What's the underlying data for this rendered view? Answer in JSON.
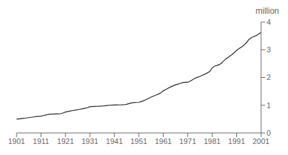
{
  "chart_data": {
    "type": "line",
    "ylabel": "million",
    "x": [
      1901,
      1902,
      1903,
      1904,
      1905,
      1906,
      1907,
      1908,
      1909,
      1910,
      1911,
      1912,
      1913,
      1914,
      1915,
      1916,
      1917,
      1918,
      1919,
      1920,
      1921,
      1922,
      1923,
      1924,
      1925,
      1926,
      1927,
      1928,
      1929,
      1930,
      1931,
      1932,
      1933,
      1934,
      1935,
      1936,
      1937,
      1938,
      1939,
      1940,
      1941,
      1942,
      1943,
      1944,
      1945,
      1946,
      1947,
      1948,
      1949,
      1950,
      1951,
      1952,
      1953,
      1954,
      1955,
      1956,
      1957,
      1958,
      1959,
      1960,
      1961,
      1962,
      1963,
      1964,
      1965,
      1966,
      1967,
      1968,
      1969,
      1970,
      1971,
      1972,
      1973,
      1974,
      1975,
      1976,
      1977,
      1978,
      1979,
      1980,
      1981,
      1982,
      1983,
      1984,
      1985,
      1986,
      1987,
      1988,
      1989,
      1990,
      1991,
      1992,
      1993,
      1994,
      1995,
      1996,
      1997,
      1998,
      1999,
      2000,
      2001
    ],
    "values": [
      0.498,
      0.508,
      0.519,
      0.53,
      0.54,
      0.553,
      0.566,
      0.578,
      0.591,
      0.6,
      0.606,
      0.627,
      0.648,
      0.67,
      0.68,
      0.682,
      0.685,
      0.686,
      0.695,
      0.72,
      0.756,
      0.772,
      0.79,
      0.808,
      0.822,
      0.839,
      0.857,
      0.874,
      0.893,
      0.913,
      0.947,
      0.955,
      0.96,
      0.963,
      0.966,
      0.97,
      0.978,
      0.99,
      1.0,
      1.005,
      1.009,
      1.011,
      1.013,
      1.015,
      1.019,
      1.035,
      1.059,
      1.082,
      1.096,
      1.099,
      1.106,
      1.135,
      1.165,
      1.204,
      1.248,
      1.292,
      1.33,
      1.365,
      1.4,
      1.445,
      1.519,
      1.565,
      1.614,
      1.662,
      1.699,
      1.735,
      1.762,
      1.789,
      1.816,
      1.827,
      1.828,
      1.87,
      1.918,
      1.974,
      2.01,
      2.037,
      2.08,
      2.12,
      2.165,
      2.215,
      2.346,
      2.41,
      2.437,
      2.469,
      2.533,
      2.625,
      2.695,
      2.756,
      2.82,
      2.895,
      2.977,
      3.045,
      3.101,
      3.165,
      3.255,
      3.369,
      3.435,
      3.479,
      3.512,
      3.565,
      3.628
    ],
    "color": "#222222",
    "xlim": [
      1901,
      2001
    ],
    "xticks": [
      1901,
      1911,
      1921,
      1931,
      1941,
      1951,
      1961,
      1971,
      1981,
      1991,
      2001
    ],
    "ylim": [
      0,
      4
    ],
    "yticks": [
      0,
      1,
      2,
      3,
      4
    ],
    "grid": false
  }
}
